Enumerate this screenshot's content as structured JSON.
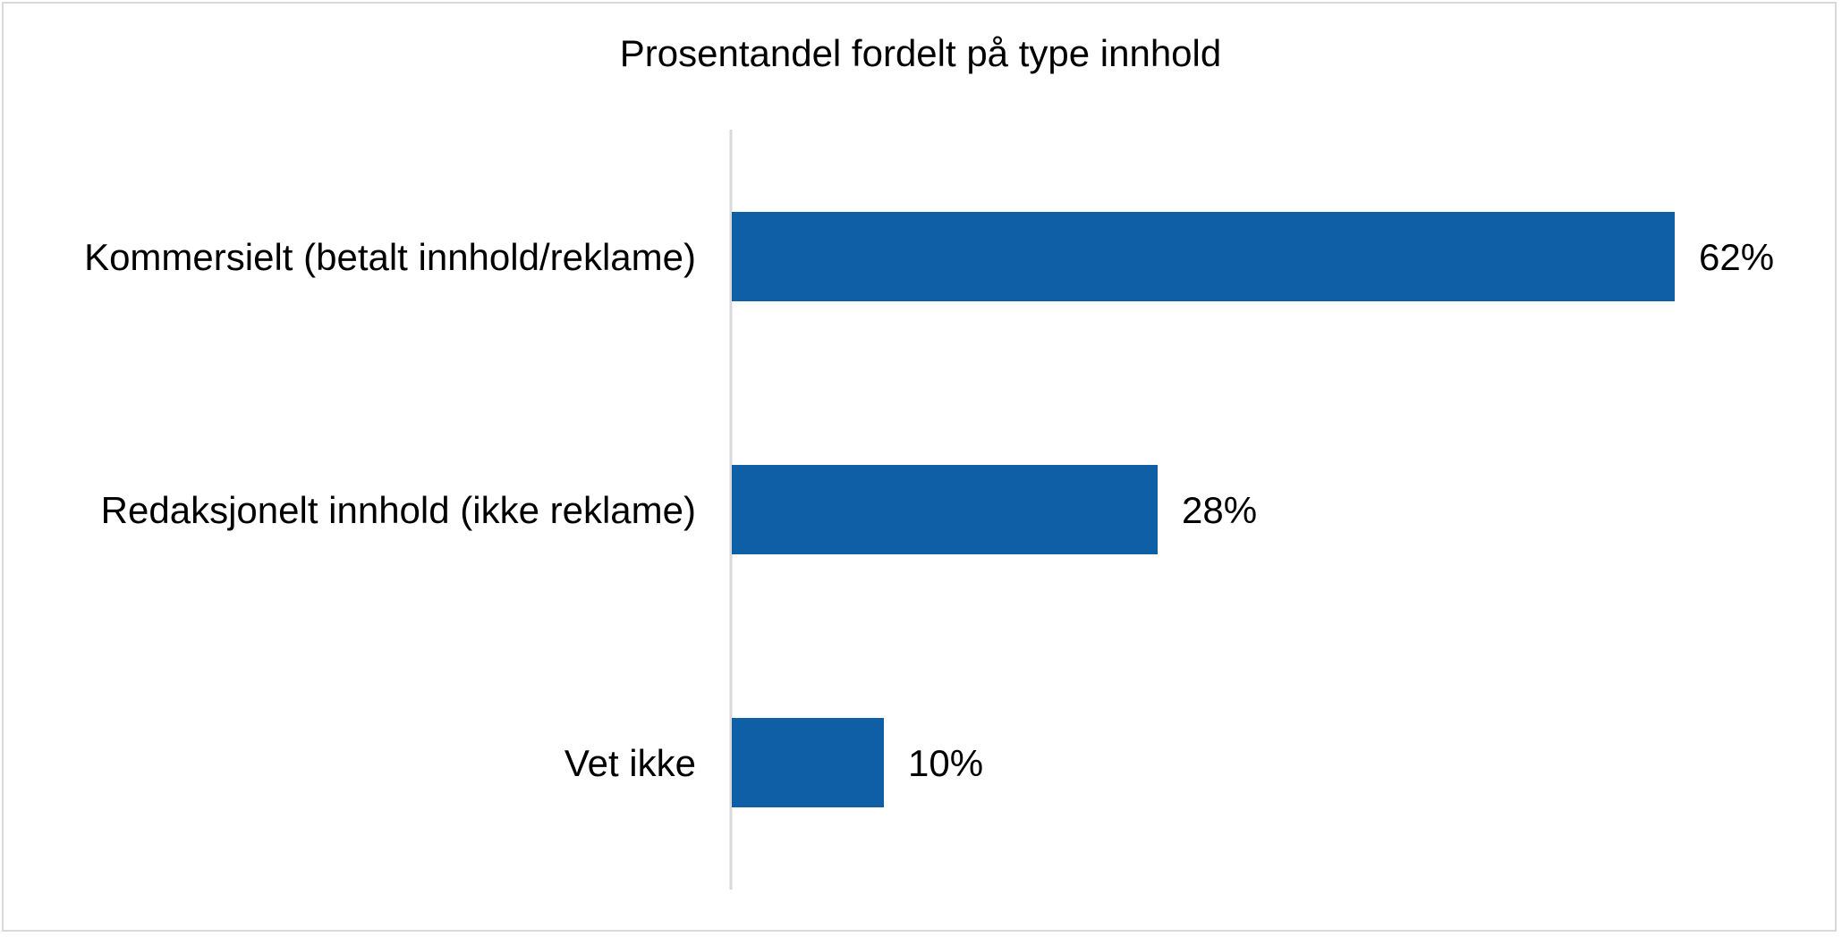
{
  "chart_data": {
    "type": "bar",
    "orientation": "horizontal",
    "title": "Prosentandel fordelt på type innhold",
    "categories": [
      "Kommersielt (betalt innhold/reklame)",
      "Redaksjonelt innhold (ikke reklame)",
      "Vet ikke"
    ],
    "values": [
      62,
      28,
      10
    ],
    "data_labels": [
      "62%",
      "28%",
      "10%"
    ],
    "value_axis": {
      "visible": false,
      "range": [
        0,
        70
      ]
    },
    "grid": false,
    "legend": "none",
    "colors": {
      "bar": "#0F5FA6",
      "axis": "#D9D9D9",
      "frame": "#D9D9D9",
      "text": "#000000"
    }
  }
}
